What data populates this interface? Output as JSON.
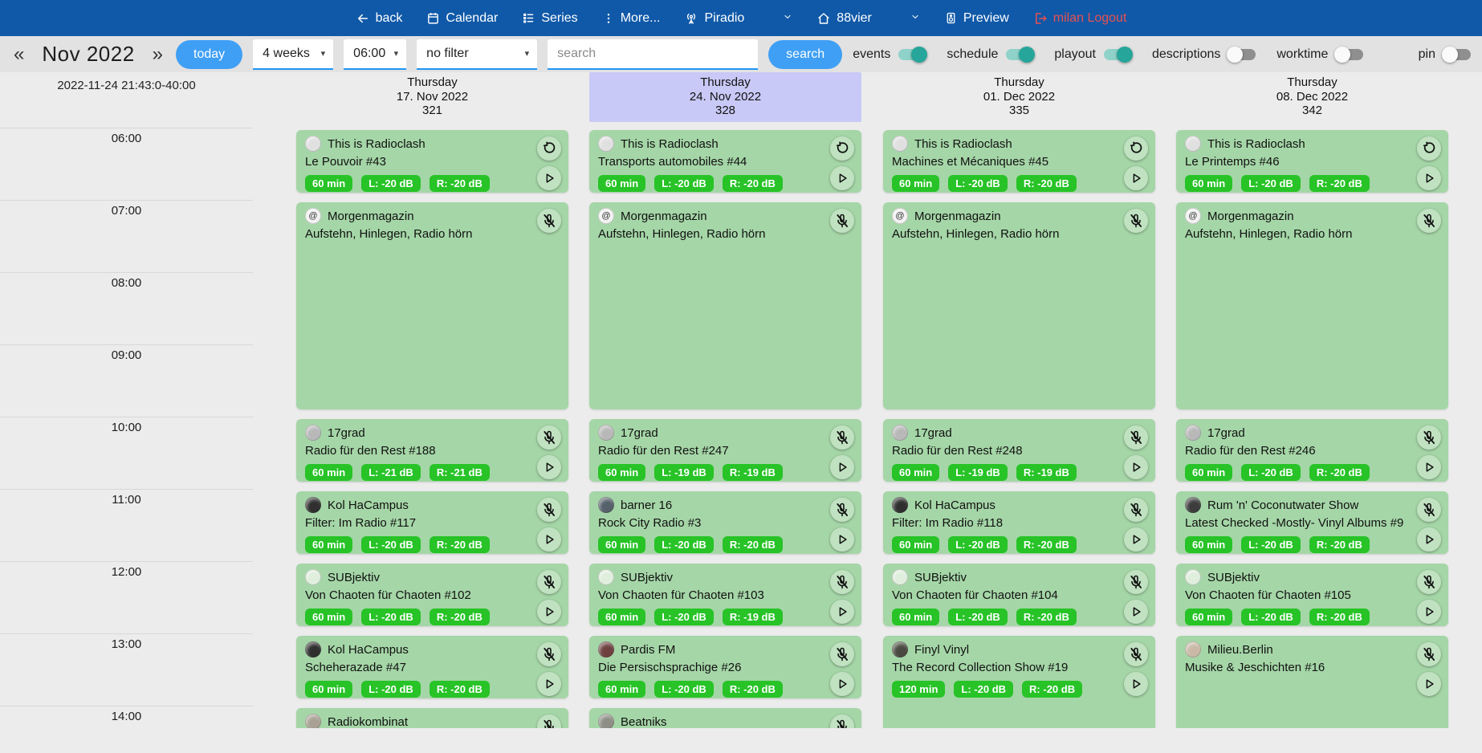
{
  "colors": {
    "navbar_bg": "#1059a8",
    "toolbar_bg": "#e2e2e2",
    "page_bg": "#ececec",
    "accent_blue": "#3f9ff5",
    "select_underline": "#2196f3",
    "highlight_lavender": "#c9c9f7",
    "card_green": "#a5d6a7",
    "badge_green": "#27c327",
    "toggle_on": "#26a69a",
    "toggle_on_track": "#8fd2ca",
    "toggle_off_thumb": "#fafafa",
    "toggle_off_track": "#8f8f8f",
    "logout_red": "#e85050",
    "line_color": "#d8d8d8"
  },
  "navbar": {
    "items": [
      {
        "label": "back",
        "icon": "arrow-left-icon"
      },
      {
        "label": "Calendar",
        "icon": "calendar-icon"
      },
      {
        "label": "Series",
        "icon": "series-icon"
      },
      {
        "label": "More...",
        "icon": "kebab-icon"
      },
      {
        "label": "Piradio",
        "icon": "antenna-icon",
        "chevron": true
      },
      {
        "label": "88vier",
        "icon": "home-icon",
        "chevron": true
      },
      {
        "label": "Preview",
        "icon": "preview-icon"
      },
      {
        "label": "milan Logout",
        "icon": "logout-icon"
      }
    ]
  },
  "toolbar": {
    "prev_label": "«",
    "month_label": "Nov 2022",
    "next_label": "»",
    "today_label": "today",
    "weeks_select": "4 weeks",
    "time_select": "06:00",
    "filter_select": "no filter",
    "search_placeholder": "search",
    "search_button": "search",
    "toggles": [
      {
        "label": "events",
        "on": true
      },
      {
        "label": "schedule",
        "on": true
      },
      {
        "label": "playout",
        "on": true
      },
      {
        "label": "descriptions",
        "on": false
      },
      {
        "label": "worktime",
        "on": false
      },
      {
        "label": "pin",
        "on": false,
        "align_right": true
      }
    ]
  },
  "time_gutter": {
    "clock": "2022-11-24 21:43:0-40:00",
    "hours": [
      "06:00",
      "07:00",
      "08:00",
      "09:00",
      "10:00",
      "11:00",
      "12:00",
      "13:00",
      "14:00"
    ]
  },
  "columns": [
    {
      "header": {
        "weekday": "Thursday",
        "date": "17. Nov 2022",
        "day_of_year": "321",
        "highlighted": false
      },
      "events": [
        {
          "show": "This is Radioclash",
          "episode": "Le Pouvoir #43",
          "start": "06:00",
          "duration_min": 60,
          "badges": [
            "60 min",
            "L: -20 dB",
            "R: -20 dB"
          ],
          "corner_icon": "refresh-icon",
          "has_play": true,
          "avatar_color": "#e0e0e0"
        },
        {
          "show": "Morgenmagazin",
          "episode": "Aufstehn, Hinlegen, Radio hörn",
          "start": "07:00",
          "duration_min": 180,
          "badges": [],
          "corner_icon": "mic-off-icon",
          "has_play": false,
          "avatar_color": "#f2f2f2",
          "avatar_glyph": "@"
        },
        {
          "show": "17grad",
          "episode": "Radio für den Rest #188",
          "start": "10:00",
          "duration_min": 60,
          "badges": [
            "60 min",
            "L: -21 dB",
            "R: -21 dB"
          ],
          "corner_icon": "mic-off-icon",
          "has_play": true,
          "avatar_color": "#b8b8b8"
        },
        {
          "show": "Kol HaCampus",
          "episode": "Filter: Im Radio #117",
          "start": "11:00",
          "duration_min": 60,
          "badges": [
            "60 min",
            "L: -20 dB",
            "R: -20 dB"
          ],
          "corner_icon": "mic-off-icon",
          "has_play": true,
          "avatar_color": "#2f2f2f"
        },
        {
          "show": "SUBjektiv",
          "episode": "Von Chaoten für Chaoten #102",
          "start": "12:00",
          "duration_min": 60,
          "badges": [
            "60 min",
            "L: -20 dB",
            "R: -20 dB"
          ],
          "corner_icon": "mic-off-icon",
          "has_play": true,
          "avatar_color": "#dfeedd"
        },
        {
          "show": "Kol HaCampus",
          "episode": "Scheherazade #47",
          "start": "13:00",
          "duration_min": 60,
          "badges": [
            "60 min",
            "L: -20 dB",
            "R: -20 dB"
          ],
          "corner_icon": "mic-off-icon",
          "has_play": true,
          "avatar_color": "#2f2f2f"
        },
        {
          "show": "Radiokombinat",
          "episode": "",
          "start": "14:00",
          "duration_min": 60,
          "badges": [],
          "corner_icon": "mic-off-icon",
          "has_play": false,
          "avatar_color": "#a9a194"
        }
      ]
    },
    {
      "header": {
        "weekday": "Thursday",
        "date": "24. Nov 2022",
        "day_of_year": "328",
        "highlighted": true
      },
      "events": [
        {
          "show": "This is Radioclash",
          "episode": "Transports automobiles #44",
          "start": "06:00",
          "duration_min": 60,
          "badges": [
            "60 min",
            "L: -20 dB",
            "R: -20 dB"
          ],
          "corner_icon": "refresh-icon",
          "has_play": true,
          "avatar_color": "#e0e0e0"
        },
        {
          "show": "Morgenmagazin",
          "episode": "Aufstehn, Hinlegen, Radio hörn",
          "start": "07:00",
          "duration_min": 180,
          "badges": [],
          "corner_icon": "mic-off-icon",
          "has_play": false,
          "avatar_color": "#f2f2f2",
          "avatar_glyph": "@"
        },
        {
          "show": "17grad",
          "episode": "Radio für den Rest #247",
          "start": "10:00",
          "duration_min": 60,
          "badges": [
            "60 min",
            "L: -19 dB",
            "R: -19 dB"
          ],
          "corner_icon": "mic-off-icon",
          "has_play": true,
          "avatar_color": "#b8b8b8"
        },
        {
          "show": "barner 16",
          "episode": "Rock City Radio #3",
          "start": "11:00",
          "duration_min": 60,
          "badges": [
            "60 min",
            "L: -20 dB",
            "R: -20 dB"
          ],
          "corner_icon": "mic-off-icon",
          "has_play": true,
          "avatar_color": "#55606a"
        },
        {
          "show": "SUBjektiv",
          "episode": "Von Chaoten für Chaoten #103",
          "start": "12:00",
          "duration_min": 60,
          "badges": [
            "60 min",
            "L: -20 dB",
            "R: -19 dB"
          ],
          "corner_icon": "mic-off-icon",
          "has_play": true,
          "avatar_color": "#dfeedd"
        },
        {
          "show": "Pardis FM",
          "episode": "Die Persischsprachige #26",
          "start": "13:00",
          "duration_min": 60,
          "badges": [
            "60 min",
            "L: -20 dB",
            "R: -20 dB"
          ],
          "corner_icon": "mic-off-icon",
          "has_play": true,
          "avatar_color": "#6e4040"
        },
        {
          "show": "Beatniks",
          "episode": "",
          "start": "14:00",
          "duration_min": 60,
          "badges": [],
          "corner_icon": "mic-off-icon",
          "has_play": false,
          "avatar_color": "#8e8e86"
        }
      ]
    },
    {
      "header": {
        "weekday": "Thursday",
        "date": "01. Dec 2022",
        "day_of_year": "335",
        "highlighted": false
      },
      "events": [
        {
          "show": "This is Radioclash",
          "episode": "Machines et Mécaniques #45",
          "start": "06:00",
          "duration_min": 60,
          "badges": [
            "60 min",
            "L: -20 dB",
            "R: -20 dB"
          ],
          "corner_icon": "refresh-icon",
          "has_play": true,
          "avatar_color": "#e0e0e0"
        },
        {
          "show": "Morgenmagazin",
          "episode": "Aufstehn, Hinlegen, Radio hörn",
          "start": "07:00",
          "duration_min": 180,
          "badges": [],
          "corner_icon": "mic-off-icon",
          "has_play": false,
          "avatar_color": "#f2f2f2",
          "avatar_glyph": "@"
        },
        {
          "show": "17grad",
          "episode": "Radio für den Rest #248",
          "start": "10:00",
          "duration_min": 60,
          "badges": [
            "60 min",
            "L: -19 dB",
            "R: -19 dB"
          ],
          "corner_icon": "mic-off-icon",
          "has_play": true,
          "avatar_color": "#b8b8b8"
        },
        {
          "show": "Kol HaCampus",
          "episode": "Filter: Im Radio #118",
          "start": "11:00",
          "duration_min": 60,
          "badges": [
            "60 min",
            "L: -20 dB",
            "R: -20 dB"
          ],
          "corner_icon": "mic-off-icon",
          "has_play": true,
          "avatar_color": "#2f2f2f"
        },
        {
          "show": "SUBjektiv",
          "episode": "Von Chaoten für Chaoten #104",
          "start": "12:00",
          "duration_min": 60,
          "badges": [
            "60 min",
            "L: -20 dB",
            "R: -20 dB"
          ],
          "corner_icon": "mic-off-icon",
          "has_play": true,
          "avatar_color": "#dfeedd"
        },
        {
          "show": "Finyl Vinyl",
          "episode": "The Record Collection Show #19",
          "start": "13:00",
          "duration_min": 120,
          "badges": [
            "120 min",
            "L: -20 dB",
            "R: -20 dB"
          ],
          "corner_icon": "mic-off-icon",
          "has_play": true,
          "avatar_color": "#4a4a42"
        }
      ]
    },
    {
      "header": {
        "weekday": "Thursday",
        "date": "08. Dec 2022",
        "day_of_year": "342",
        "highlighted": false
      },
      "events": [
        {
          "show": "This is Radioclash",
          "episode": "Le Printemps #46",
          "start": "06:00",
          "duration_min": 60,
          "badges": [
            "60 min",
            "L: -20 dB",
            "R: -20 dB"
          ],
          "corner_icon": "refresh-icon",
          "has_play": true,
          "avatar_color": "#e0e0e0"
        },
        {
          "show": "Morgenmagazin",
          "episode": "Aufstehn, Hinlegen, Radio hörn",
          "start": "07:00",
          "duration_min": 180,
          "badges": [],
          "corner_icon": "mic-off-icon",
          "has_play": false,
          "avatar_color": "#f2f2f2",
          "avatar_glyph": "@"
        },
        {
          "show": "17grad",
          "episode": "Radio für den Rest #246",
          "start": "10:00",
          "duration_min": 60,
          "badges": [
            "60 min",
            "L: -20 dB",
            "R: -20 dB"
          ],
          "corner_icon": "mic-off-icon",
          "has_play": true,
          "avatar_color": "#b8b8b8"
        },
        {
          "show": "Rum 'n' Coconutwater Show",
          "episode": "Latest Checked -Mostly- Vinyl Albums #9",
          "start": "11:00",
          "duration_min": 60,
          "badges": [
            "60 min",
            "L: -20 dB",
            "R: -20 dB"
          ],
          "corner_icon": "mic-off-icon",
          "has_play": true,
          "avatar_color": "#3c3c3c"
        },
        {
          "show": "SUBjektiv",
          "episode": "Von Chaoten für Chaoten #105",
          "start": "12:00",
          "duration_min": 60,
          "badges": [
            "60 min",
            "L: -20 dB",
            "R: -20 dB"
          ],
          "corner_icon": "mic-off-icon",
          "has_play": true,
          "avatar_color": "#dfeedd"
        },
        {
          "show": "Milieu.Berlin",
          "episode": "Musike & Jeschichten #16",
          "start": "13:00",
          "duration_min": 120,
          "badges": [],
          "corner_icon": "mic-off-icon",
          "has_play": true,
          "avatar_color": "#c9b9a6"
        }
      ]
    }
  ]
}
